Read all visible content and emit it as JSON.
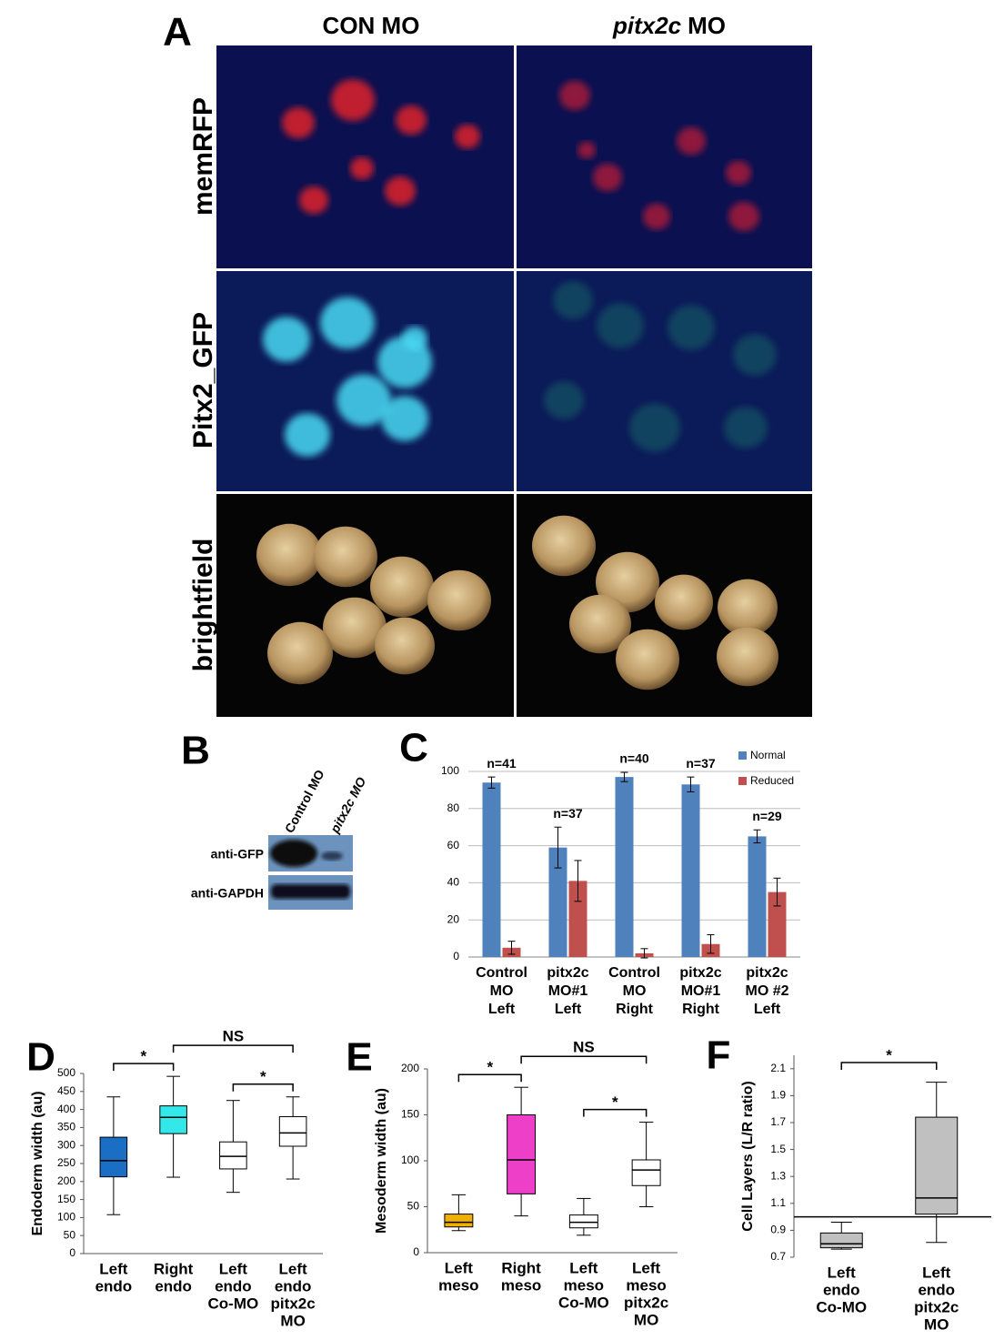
{
  "panel_a": {
    "label": "A",
    "column_1": "CON MO",
    "column_2_italic": "pitx2c",
    "column_2_rest": "MO",
    "row_labels": [
      "memRFP",
      "Pitx2_GFP",
      "brightfield"
    ]
  },
  "panel_b": {
    "label": "B",
    "lanes": [
      "Control MO",
      "pitx2c MO"
    ],
    "blots": [
      "anti-GFP",
      "anti-GAPDH"
    ]
  },
  "chart_data": [
    {
      "type": "bar",
      "label": "C",
      "categories": [
        [
          "Control",
          "MO",
          "Left"
        ],
        [
          "pitx2c",
          "MO#1",
          "Left"
        ],
        [
          "Control",
          "MO",
          "Right"
        ],
        [
          "pitx2c",
          "MO#1",
          "Right"
        ],
        [
          "pitx2c",
          "MO #2",
          "Left"
        ]
      ],
      "n_labels": [
        "n=41",
        "n=37",
        "n=40",
        "n=37",
        "n=29"
      ],
      "series": [
        {
          "name": "Normal",
          "color": "#4f81bd",
          "values": [
            94,
            59,
            97,
            93,
            65
          ],
          "errors": [
            3,
            11,
            2.5,
            4,
            3.5
          ]
        },
        {
          "name": "Reduced",
          "color": "#c0504d",
          "values": [
            5,
            41,
            2,
            7,
            35
          ],
          "errors": [
            3.5,
            11,
            2.5,
            5,
            7.5
          ]
        }
      ],
      "ylim": [
        0,
        100
      ],
      "yticks": [
        0,
        20,
        40,
        60,
        80,
        100
      ],
      "grid": true,
      "legend": "top-right"
    },
    {
      "type": "box",
      "label": "D",
      "y_label": "Endoderm width (au)",
      "categories": [
        [
          "Left",
          "endo"
        ],
        [
          "Right",
          "endo"
        ],
        [
          "Left",
          "endo",
          "Co-MO"
        ],
        [
          "Left",
          "endo",
          "pitx2c",
          "MO"
        ]
      ],
      "boxes": [
        {
          "min": 108,
          "q1": 213,
          "median": 258,
          "q3": 323,
          "max": 435,
          "color": "#1a6fc4"
        },
        {
          "min": 212,
          "q1": 333,
          "median": 378,
          "q3": 410,
          "max": 492,
          "color": "#33e8e8"
        },
        {
          "min": 170,
          "q1": 235,
          "median": 270,
          "q3": 310,
          "max": 425,
          "color": "#ffffff"
        },
        {
          "min": 207,
          "q1": 298,
          "median": 335,
          "q3": 380,
          "max": 435,
          "color": "#ffffff"
        }
      ],
      "annotations": [
        {
          "text": "*",
          "from": 0,
          "to": 1
        },
        {
          "text": "NS",
          "from": 1,
          "to": 3
        },
        {
          "text": "*",
          "from": 2,
          "to": 3
        }
      ],
      "ylim": [
        0,
        500
      ],
      "yticks": [
        0,
        50,
        100,
        150,
        200,
        250,
        300,
        350,
        400,
        450,
        500
      ]
    },
    {
      "type": "box",
      "label": "E",
      "y_label": "Mesoderm width (au)",
      "categories": [
        [
          "Left",
          "meso"
        ],
        [
          "Right",
          "meso"
        ],
        [
          "Left",
          "meso",
          "Co-MO"
        ],
        [
          "Left",
          "meso",
          "pitx2c",
          "MO"
        ]
      ],
      "boxes": [
        {
          "min": 24,
          "q1": 28,
          "median": 33,
          "q3": 42,
          "max": 63,
          "color": "#f0b000"
        },
        {
          "min": 40,
          "q1": 64,
          "median": 101,
          "q3": 150,
          "max": 180,
          "color": "#ee3fc8"
        },
        {
          "min": 19,
          "q1": 27,
          "median": 33,
          "q3": 41,
          "max": 59,
          "color": "#ffffff"
        },
        {
          "min": 50,
          "q1": 73,
          "median": 90,
          "q3": 101,
          "max": 142,
          "color": "#ffffff"
        }
      ],
      "annotations": [
        {
          "text": "*",
          "from": 0,
          "to": 1
        },
        {
          "text": "NS",
          "from": 1,
          "to": 3
        },
        {
          "text": "*",
          "from": 2,
          "to": 3
        }
      ],
      "ylim": [
        0,
        200
      ],
      "yticks": [
        0,
        50,
        100,
        150,
        200
      ]
    },
    {
      "type": "box",
      "label": "F",
      "y_label": "Cell Layers (L/R ratio)",
      "categories": [
        [
          "Left",
          "endo",
          "Co-MO"
        ],
        [
          "Left",
          "endo",
          "pitx2c",
          "MO"
        ]
      ],
      "boxes": [
        {
          "min": 0.76,
          "q1": 0.77,
          "median": 0.8,
          "q3": 0.88,
          "max": 0.96,
          "color": "#c0c0c0"
        },
        {
          "min": 0.81,
          "q1": 1.02,
          "median": 1.14,
          "q3": 1.74,
          "max": 2.0,
          "color": "#c0c0c0"
        }
      ],
      "annotations": [
        {
          "text": "*",
          "from": 0,
          "to": 1
        }
      ],
      "hline": 1.0,
      "ylim": [
        0.7,
        2.2
      ],
      "yticks": [
        0.7,
        0.9,
        1.1,
        1.3,
        1.5,
        1.7,
        1.9,
        2.1
      ]
    }
  ]
}
